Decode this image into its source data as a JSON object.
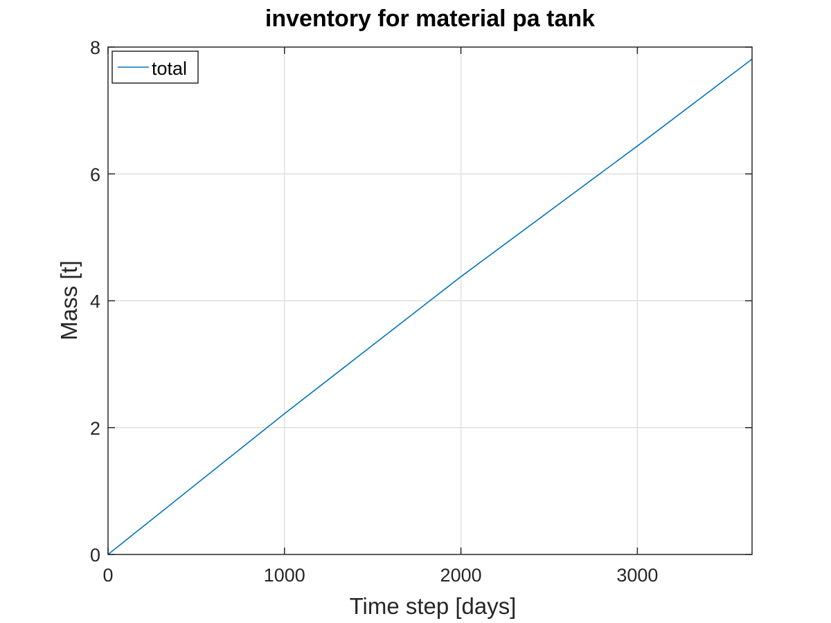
{
  "chart_data": {
    "type": "line",
    "title": "inventory for material pa tank",
    "xlabel": "Time step [days]",
    "ylabel": "Mass [t]",
    "xlim": [
      0,
      3650
    ],
    "ylim": [
      0,
      8
    ],
    "xticks": [
      0,
      1000,
      2000,
      3000
    ],
    "yticks": [
      0,
      2,
      4,
      6,
      8
    ],
    "xtick_labels": [
      "0",
      "1000",
      "2000",
      "3000"
    ],
    "ytick_labels": [
      "0",
      "2",
      "4",
      "6",
      "8"
    ],
    "grid": true,
    "legend_position": "top-left",
    "series": [
      {
        "name": "total",
        "color": "#0072bd",
        "x": [
          0,
          1000,
          2000,
          3000,
          3650
        ],
        "y": [
          0,
          2.22,
          4.38,
          6.44,
          7.81
        ]
      }
    ]
  }
}
